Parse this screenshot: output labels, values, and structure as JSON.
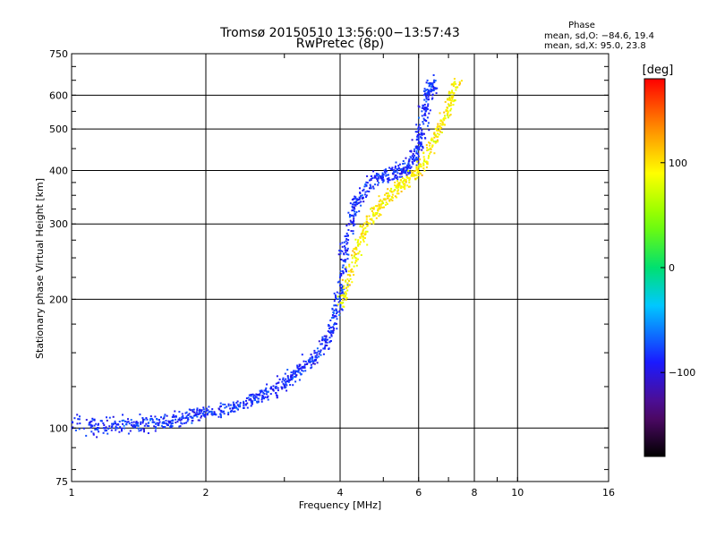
{
  "chart_data": {
    "type": "scatter",
    "title": "Tromsø 20150510 13:56:00−13:57:43",
    "subtitle": "RwPretec (8p)",
    "xlabel": "Frequency [MHz]",
    "ylabel": "Stationary phase Virtual Height [km]",
    "x_scale": "log",
    "y_scale": "log",
    "xlim": [
      1,
      16
    ],
    "ylim": [
      75,
      750
    ],
    "x_ticks": [
      "1",
      "2",
      "4",
      "6",
      "8",
      "10",
      "16"
    ],
    "y_ticks": [
      "75",
      "100",
      "200",
      "300",
      "400",
      "500",
      "600",
      "750"
    ],
    "grid": true,
    "phase_box": {
      "title": "Phase",
      "line_o": "mean, sd,O: −84.6, 19.4",
      "line_x": "mean, sd,X:  95.0, 23.8"
    },
    "colorbar": {
      "label": "[deg]",
      "colormap": "rainbow",
      "range": [
        -180,
        180
      ],
      "ticks": [
        "100",
        "0",
        "−100"
      ],
      "tick_values": [
        100,
        0,
        -100
      ]
    },
    "series": [
      {
        "mode": "O",
        "trace": [
          [
            1.0,
            102
          ],
          [
            1.2,
            101
          ],
          [
            1.4,
            102
          ],
          [
            1.6,
            103
          ],
          [
            1.8,
            106
          ],
          [
            2.0,
            108
          ],
          [
            2.3,
            112
          ],
          [
            2.6,
            118
          ],
          [
            2.9,
            125
          ],
          [
            3.2,
            135
          ],
          [
            3.5,
            145
          ],
          [
            3.8,
            165
          ],
          [
            4.0,
            200
          ],
          [
            4.1,
            260
          ],
          [
            4.3,
            330
          ],
          [
            4.7,
            380
          ],
          [
            5.2,
            395
          ],
          [
            5.6,
            400
          ],
          [
            5.9,
            430
          ],
          [
            6.1,
            500
          ],
          [
            6.3,
            600
          ],
          [
            6.5,
            640
          ]
        ],
        "phase_mean": -84.6,
        "phase_sd": 19.4
      },
      {
        "mode": "X",
        "trace": [
          [
            4.0,
            190
          ],
          [
            4.3,
            250
          ],
          [
            4.6,
            300
          ],
          [
            5.0,
            340
          ],
          [
            5.5,
            370
          ],
          [
            6.0,
            400
          ],
          [
            6.5,
            470
          ],
          [
            7.0,
            560
          ],
          [
            7.3,
            640
          ]
        ],
        "phase_mean": 95.0,
        "phase_sd": 23.8
      }
    ]
  }
}
